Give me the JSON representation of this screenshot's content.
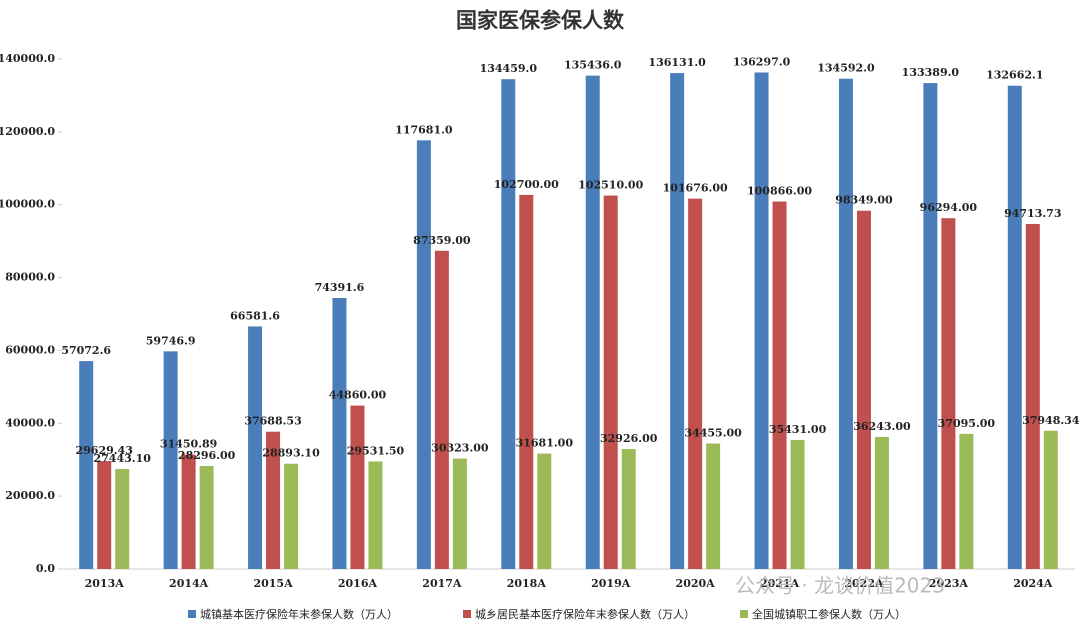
{
  "chart_data": {
    "type": "bar",
    "title": "国家医保参保人数",
    "categories": [
      "2013A",
      "2014A",
      "2015A",
      "2016A",
      "2017A",
      "2018A",
      "2019A",
      "2020A",
      "2021A",
      "2022A",
      "2023A",
      "2024A"
    ],
    "series": [
      {
        "name": "城镇基本医疗保险年末参保人数（万人）",
        "color": "#4a7ebb",
        "values": [
          57072.6,
          59746.9,
          66581.6,
          74391.6,
          117681.0,
          134459.0,
          135436.0,
          136131.0,
          136297.0,
          134592.0,
          133389.0,
          132662.1
        ],
        "value_labels": [
          "57072.6",
          "59746.9",
          "66581.6",
          "74391.6",
          "117681.0",
          "134459.0",
          "135436.0",
          "136131.0",
          "136297.0",
          "134592.0",
          "133389.0",
          "132662.1"
        ]
      },
      {
        "name": "城乡居民基本医疗保险年末参保人数（万人）",
        "color": "#c0504d",
        "values": [
          29629.43,
          31450.89,
          37688.53,
          44860.0,
          87359.0,
          102700.0,
          102510.0,
          101676.0,
          100866.0,
          98349.0,
          96294.0,
          94713.73
        ],
        "value_labels": [
          "29629.43",
          "31450.89",
          "37688.53",
          "44860.00",
          "87359.00",
          "102700.00",
          "102510.00",
          "101676.00",
          "100866.00",
          "98349.00",
          "96294.00",
          "94713.73"
        ]
      },
      {
        "name": "全国城镇职工参保人数（万人）",
        "color": "#9bbb59",
        "values": [
          27443.1,
          28296.0,
          28893.1,
          29531.5,
          30323.0,
          31681.0,
          32926.0,
          34455.0,
          35431.0,
          36243.0,
          37095.0,
          37948.34
        ],
        "value_labels": [
          "27443.10",
          "28296.00",
          "28893.10",
          "29531.50",
          "30323.00",
          "31681.00",
          "32926.00",
          "34455.00",
          "35431.00",
          "36243.00",
          "37095.00",
          "37948.34"
        ]
      }
    ],
    "ylim": [
      0,
      140000
    ],
    "yticks": [
      {
        "value": 0,
        "label": "0.0"
      },
      {
        "value": 20000,
        "label": "20000.0"
      },
      {
        "value": 40000,
        "label": "40000.0"
      },
      {
        "value": 60000,
        "label": "60000.0"
      },
      {
        "value": 80000,
        "label": "80000.0"
      },
      {
        "value": 100000,
        "label": "100000.0"
      },
      {
        "value": 120000,
        "label": "120000.0"
      },
      {
        "value": 140000,
        "label": "140000.0"
      }
    ],
    "grid": false,
    "watermark": "公众号 · 龙谈价值2023"
  }
}
